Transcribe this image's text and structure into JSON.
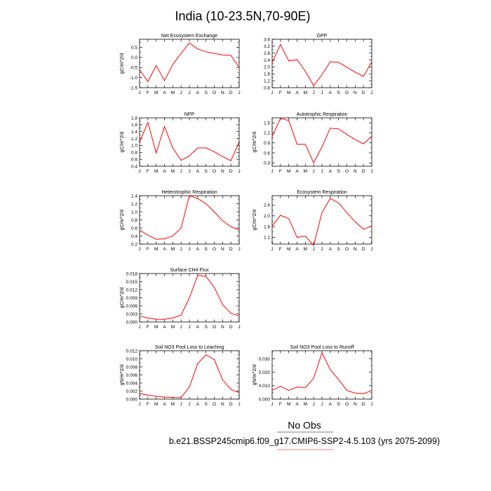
{
  "title": "India (10-23.5N,70-90E)",
  "footer": {
    "obs_label": "No Obs",
    "case_label": "b.e21.BSSP245cmip6.f09_g17.CMIP6-SSP2-4.5.103 (yrs 2075-2099)",
    "obs_line_color": "#000000",
    "case_line_color": "#ff0000"
  },
  "line_color": "#ff0000",
  "chart_data": [
    {
      "type": "line",
      "title": "Net Ecosystem Exchange",
      "ylabel": "gC/m^2/d",
      "categories": [
        "J",
        "F",
        "M",
        "A",
        "M",
        "J",
        "J",
        "A",
        "S",
        "O",
        "N",
        "D",
        "J"
      ],
      "values": [
        -0.6,
        -1.2,
        -0.4,
        -1.15,
        -0.35,
        0.2,
        0.72,
        0.42,
        0.28,
        0.2,
        0.12,
        0.1,
        -0.5
      ],
      "ylim": [
        -1.5,
        0.9
      ],
      "yticks": [
        -1.5,
        -1.0,
        -0.5,
        0.0,
        0.5
      ],
      "ytick_labels": [
        "-1.5",
        "-1.0",
        "-0.5",
        "0.0",
        "0.5"
      ]
    },
    {
      "type": "line",
      "title": "GPP",
      "ylabel": "",
      "categories": [
        "J",
        "F",
        "M",
        "A",
        "M",
        "J",
        "J",
        "A",
        "S",
        "O",
        "N",
        "D",
        "J"
      ],
      "values": [
        2.25,
        3.3,
        2.35,
        2.42,
        1.75,
        0.92,
        1.55,
        2.3,
        2.27,
        1.98,
        1.7,
        1.45,
        2.3
      ],
      "ylim": [
        0.8,
        3.6
      ],
      "yticks": [
        0.8,
        1.2,
        1.6,
        2.0,
        2.4,
        2.8,
        3.2,
        3.6
      ],
      "ytick_labels": [
        "0.8",
        "1.2",
        "1.6",
        "2.0",
        "2.4",
        "2.8",
        "3.2",
        "3.6"
      ]
    },
    {
      "type": "line",
      "title": "NPP",
      "ylabel": "gC/m^2/d",
      "categories": [
        "J",
        "F",
        "M",
        "A",
        "M",
        "J",
        "J",
        "A",
        "S",
        "O",
        "N",
        "D",
        "J"
      ],
      "values": [
        1.1,
        1.67,
        0.78,
        1.55,
        0.93,
        0.57,
        0.7,
        0.93,
        0.93,
        0.82,
        0.68,
        0.56,
        1.1
      ],
      "ylim": [
        0.4,
        1.8
      ],
      "yticks": [
        0.4,
        0.6,
        0.8,
        1.0,
        1.2,
        1.4,
        1.6,
        1.8
      ],
      "ytick_labels": [
        "0.4",
        "0.6",
        "0.8",
        "1.0",
        "1.2",
        "1.4",
        "1.6",
        "1.8"
      ]
    },
    {
      "type": "line",
      "title": "Autotrophic Respiration",
      "ylabel": "gC/m^2/d",
      "categories": [
        "J",
        "F",
        "M",
        "A",
        "M",
        "J",
        "J",
        "A",
        "S",
        "O",
        "N",
        "D",
        "J"
      ],
      "values": [
        1.1,
        1.63,
        1.57,
        0.86,
        0.86,
        0.3,
        0.78,
        1.34,
        1.32,
        1.15,
        1.0,
        0.87,
        1.1
      ],
      "ylim": [
        0.2,
        1.65
      ],
      "yticks": [
        0.3,
        0.6,
        0.9,
        1.2,
        1.5
      ],
      "ytick_labels": [
        "0.3",
        "0.6",
        "0.9",
        "1.2",
        "1.5"
      ]
    },
    {
      "type": "line",
      "title": "Heterotrophic Respiration",
      "ylabel": "gC/m^2/d",
      "categories": [
        "J",
        "F",
        "M",
        "A",
        "M",
        "J",
        "J",
        "A",
        "S",
        "O",
        "N",
        "D",
        "J"
      ],
      "values": [
        0.55,
        0.42,
        0.32,
        0.33,
        0.4,
        0.6,
        1.4,
        1.33,
        1.2,
        1.0,
        0.78,
        0.63,
        0.55
      ],
      "ylim": [
        0.2,
        1.4
      ],
      "yticks": [
        0.2,
        0.4,
        0.6,
        0.8,
        1.0,
        1.2,
        1.4
      ],
      "ytick_labels": [
        "0.2",
        "0.4",
        "0.6",
        "0.8",
        "1.0",
        "1.2",
        "1.4"
      ]
    },
    {
      "type": "line",
      "title": "Ecosystem Respiration",
      "ylabel": "gC/m^2/d",
      "categories": [
        "J",
        "F",
        "M",
        "A",
        "M",
        "J",
        "J",
        "A",
        "S",
        "O",
        "N",
        "D",
        "J"
      ],
      "values": [
        1.62,
        2.02,
        1.9,
        1.2,
        1.25,
        0.9,
        2.12,
        2.65,
        2.48,
        2.12,
        1.78,
        1.5,
        1.62
      ],
      "ylim": [
        0.95,
        2.75
      ],
      "yticks": [
        1.2,
        1.6,
        2.0,
        2.4
      ],
      "ytick_labels": [
        "1.2",
        "1.6",
        "2.0",
        "2.4"
      ]
    },
    {
      "type": "line",
      "title": "Surface CH4 Flux",
      "ylabel": "gC/m^2/d",
      "categories": [
        "J",
        "F",
        "M",
        "A",
        "M",
        "J",
        "J",
        "A",
        "S",
        "O",
        "N",
        "D",
        "J"
      ],
      "values": [
        0.0022,
        0.0015,
        0.001,
        0.001,
        0.0015,
        0.0025,
        0.009,
        0.0173,
        0.017,
        0.0128,
        0.0065,
        0.0032,
        0.0022
      ],
      "ylim": [
        0.0,
        0.018
      ],
      "yticks": [
        0.0,
        0.003,
        0.006,
        0.009,
        0.012,
        0.015,
        0.018
      ],
      "ytick_labels": [
        "0.000",
        "0.003",
        "0.006",
        "0.009",
        "0.012",
        "0.015",
        "0.018"
      ]
    },
    {
      "type": "line",
      "title": "Soil NO3 Pool Loss to Leaching",
      "ylabel": "gN/m^2/d",
      "categories": [
        "J",
        "F",
        "M",
        "A",
        "M",
        "J",
        "J",
        "A",
        "S",
        "O",
        "N",
        "D",
        "J"
      ],
      "values": [
        0.0014,
        0.001,
        0.0007,
        0.0005,
        0.0004,
        0.0004,
        0.003,
        0.0088,
        0.011,
        0.0098,
        0.0048,
        0.0024,
        0.0016
      ],
      "ylim": [
        0.0,
        0.012
      ],
      "yticks": [
        0.0,
        0.002,
        0.004,
        0.006,
        0.008,
        0.01,
        0.012
      ],
      "ytick_labels": [
        "0.000",
        "0.002",
        "0.004",
        "0.006",
        "0.008",
        "0.010",
        "0.012"
      ]
    },
    {
      "type": "line",
      "title": "Soil NO3 Pool Loss to Runoff",
      "ylabel": "gN/m^2/d",
      "categories": [
        "J",
        "F",
        "M",
        "A",
        "M",
        "J",
        "J",
        "A",
        "S",
        "O",
        "N",
        "D",
        "J"
      ],
      "values": [
        0.0065,
        0.0095,
        0.0065,
        0.009,
        0.0085,
        0.0155,
        0.0345,
        0.022,
        0.0145,
        0.0065,
        0.0045,
        0.004,
        0.0065
      ],
      "ylim": [
        0.0,
        0.036
      ],
      "yticks": [
        0.0,
        0.01,
        0.02,
        0.03
      ],
      "ytick_labels": [
        "0.000",
        "0.010",
        "0.020",
        "0.030"
      ]
    }
  ]
}
